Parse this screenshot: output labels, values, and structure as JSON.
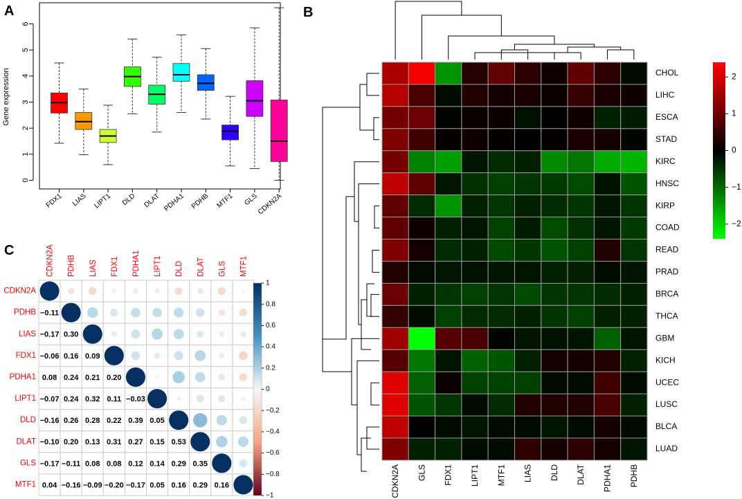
{
  "chart_data": [
    {
      "panel": "A",
      "type": "boxplot",
      "ylabel": "Gene expression",
      "ylim": [
        0,
        6.6
      ],
      "yticks": [
        "0",
        "1",
        "2",
        "3",
        "4",
        "5",
        "6"
      ],
      "categories": [
        "FDX1",
        "LIAS",
        "LIPT1",
        "DLD",
        "DLAT",
        "PDHA1",
        "PDHB",
        "MTF1",
        "GLS",
        "CDKN2A"
      ],
      "colors": [
        "#ff0000",
        "#ff9900",
        "#ccff33",
        "#33ff00",
        "#00ff66",
        "#00ffff",
        "#0066ff",
        "#3300ff",
        "#cc00ff",
        "#ff0099"
      ],
      "boxes": [
        {
          "min": 1.42,
          "q1": 2.58,
          "median": 2.98,
          "q3": 3.35,
          "max": 4.5
        },
        {
          "min": 0.98,
          "q1": 1.95,
          "median": 2.25,
          "q3": 2.6,
          "max": 3.5
        },
        {
          "min": 0.6,
          "q1": 1.45,
          "median": 1.7,
          "q3": 1.95,
          "max": 2.88
        },
        {
          "min": 2.55,
          "q1": 3.6,
          "median": 3.98,
          "q3": 4.35,
          "max": 5.42
        },
        {
          "min": 1.85,
          "q1": 2.92,
          "median": 3.3,
          "q3": 3.65,
          "max": 4.72
        },
        {
          "min": 2.6,
          "q1": 3.8,
          "median": 4.05,
          "q3": 4.48,
          "max": 5.58
        },
        {
          "min": 2.35,
          "q1": 3.45,
          "median": 3.72,
          "q3": 4.05,
          "max": 5.05
        },
        {
          "min": 0.55,
          "q1": 1.55,
          "median": 1.88,
          "q3": 2.12,
          "max": 3.22
        },
        {
          "min": 0.45,
          "q1": 2.45,
          "median": 3.05,
          "q3": 3.82,
          "max": 5.85
        },
        {
          "min": 0.0,
          "q1": 0.72,
          "median": 1.5,
          "q3": 3.08,
          "max": 6.62
        }
      ]
    },
    {
      "panel": "B",
      "type": "heatmap",
      "rows": [
        "CHOL",
        "LIHC",
        "ESCA",
        "STAD",
        "KIRC",
        "HNSC",
        "KIRP",
        "COAD",
        "READ",
        "PRAD",
        "BRCA",
        "THCA",
        "GBM",
        "KICH",
        "UCEC",
        "LUSC",
        "BLCA",
        "LUAD"
      ],
      "columns": [
        "CDKN2A",
        "GLS",
        "FDX1",
        "LIPT1",
        "MTF1",
        "LIAS",
        "DLD",
        "DLAT",
        "PDHA1",
        "PDHB"
      ],
      "values": [
        [
          1.6,
          2.3,
          -1.4,
          0.35,
          0.9,
          0.4,
          0.15,
          0.9,
          0.4,
          -0.1
        ],
        [
          1.7,
          0.7,
          -0.1,
          0.3,
          0.2,
          0.25,
          0.1,
          0.5,
          0.25,
          0.15
        ],
        [
          1.1,
          1.0,
          -0.05,
          0.1,
          0.1,
          -0.15,
          0.0,
          0.15,
          -0.3,
          -0.25
        ],
        [
          1.2,
          0.6,
          0.05,
          0.15,
          0.05,
          0.0,
          0.05,
          0.25,
          0.2,
          -0.05
        ],
        [
          1.1,
          -1.2,
          -1.5,
          -0.2,
          -0.4,
          -0.3,
          -1.3,
          -1.1,
          -1.6,
          -1.7
        ],
        [
          1.8,
          0.9,
          -0.2,
          -0.45,
          -0.6,
          -0.5,
          -0.55,
          -0.7,
          -0.15,
          -0.8
        ],
        [
          0.9,
          -0.4,
          -1.4,
          -0.3,
          -0.5,
          -0.3,
          -0.4,
          -0.5,
          -0.2,
          -0.5
        ],
        [
          0.9,
          0.15,
          -0.3,
          -0.2,
          -0.6,
          -0.25,
          -0.7,
          -0.45,
          -0.2,
          -0.55
        ],
        [
          1.2,
          0.2,
          -0.4,
          -0.3,
          -0.7,
          -0.5,
          -0.8,
          -0.6,
          0.3,
          -0.5
        ],
        [
          0.3,
          -0.1,
          -0.2,
          -0.15,
          -0.2,
          -0.2,
          -0.3,
          -0.3,
          -0.1,
          -0.2
        ],
        [
          1.0,
          -0.3,
          -0.5,
          -0.6,
          -0.5,
          -0.7,
          -0.5,
          -0.5,
          -0.4,
          -0.3
        ],
        [
          0.5,
          -0.1,
          -0.6,
          -0.4,
          -0.4,
          -0.3,
          -0.5,
          -0.6,
          -0.3,
          -0.3
        ],
        [
          1.5,
          -2.4,
          0.8,
          0.7,
          -0.05,
          -0.2,
          -0.15,
          -0.2,
          -0.9,
          -0.2
        ],
        [
          0.8,
          -1.1,
          -0.2,
          -0.9,
          -0.8,
          -0.3,
          0.2,
          0.2,
          0.3,
          -0.3
        ],
        [
          2.1,
          -0.9,
          0.1,
          -0.6,
          -0.6,
          -0.6,
          -0.1,
          -0.1,
          0.6,
          -0.1
        ],
        [
          2.1,
          -0.8,
          -0.5,
          -0.1,
          -0.4,
          0.3,
          0.3,
          0.3,
          0.7,
          -0.3
        ],
        [
          1.8,
          0.0,
          -0.1,
          -0.2,
          -0.1,
          -0.1,
          -0.2,
          -0.1,
          0.2,
          -0.1
        ],
        [
          1.2,
          -0.3,
          -0.3,
          -0.1,
          -0.1,
          0.4,
          0.2,
          0.4,
          0.2,
          -0.2
        ]
      ],
      "legend": {
        "ticks": [
          "2",
          "1",
          "0",
          "−1",
          "−2"
        ],
        "range": [
          -2.4,
          2.4
        ]
      }
    },
    {
      "panel": "C",
      "type": "correlation-matrix",
      "variables": [
        "CDKN2A",
        "PDHB",
        "LIAS",
        "FDX1",
        "PDHA1",
        "LIPT1",
        "DLD",
        "DLAT",
        "GLS",
        "MTF1"
      ],
      "lower": [
        [],
        [
          "−0.11"
        ],
        [
          "−0.17",
          "0.30"
        ],
        [
          "−0.06",
          "0.16",
          "0.09"
        ],
        [
          "0.08",
          "0.24",
          "0.21",
          "0.20"
        ],
        [
          "−0.07",
          "0.24",
          "0.32",
          "0.11",
          "−0.03"
        ],
        [
          "−0.16",
          "0.26",
          "0.28",
          "0.22",
          "0.39",
          "0.05"
        ],
        [
          "−0.10",
          "0.20",
          "0.13",
          "0.31",
          "0.27",
          "0.15",
          "0.53"
        ],
        [
          "−0.17",
          "−0.11",
          "0.08",
          "0.08",
          "0.12",
          "0.14",
          "0.29",
          "0.35"
        ],
        [
          "0.04",
          "−0.16",
          "−0.09",
          "−0.20",
          "−0.17",
          "0.05",
          "0.16",
          "0.29",
          "0.16"
        ]
      ],
      "legend_ticks": [
        "1",
        "0.8",
        "0.6",
        "0.4",
        "0.2",
        "0",
        "−0.2",
        "−0.4",
        "−0.6",
        "−0.8",
        "−1"
      ]
    }
  ],
  "panel_labels": [
    "A",
    "B",
    "C"
  ]
}
